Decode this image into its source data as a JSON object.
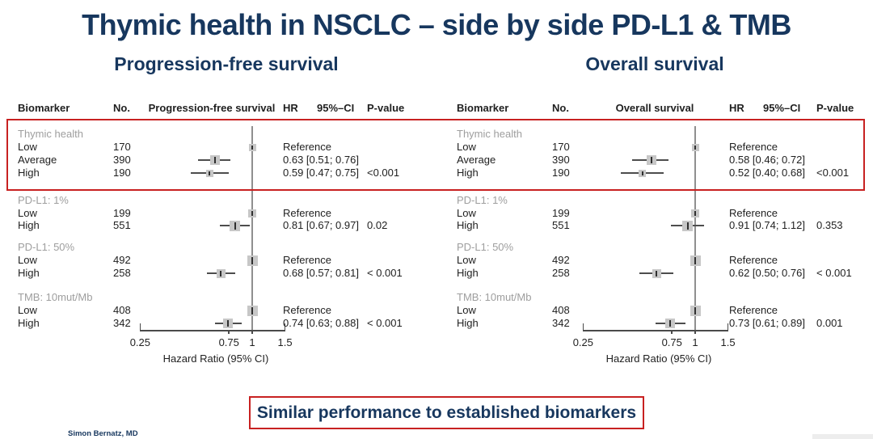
{
  "title": "Thymic health in NSCLC – side by side PD-L1 & TMB",
  "subtitles": {
    "left": "Progression-free survival",
    "right": "Overall survival"
  },
  "banner": "Similar performance to established biomarkers",
  "footer": {
    "author": "Simon Bernatz, MD"
  },
  "colors": {
    "navy": "#17375e",
    "red": "#c82121",
    "gray_label": "#9e9e9e",
    "ref_line": "#8f8f8f",
    "square_fill": "#c7c7c7",
    "ci_line": "#4d4d4d",
    "axis": "#4a4a4a",
    "text": "#1f1f1f"
  },
  "chart_data": [
    {
      "type": "forest",
      "title": "Progression-free survival",
      "columns": {
        "biomarker": "Biomarker",
        "no": "No.",
        "plot": "Progression-free survival",
        "hr": "HR",
        "ci": "95%–CI",
        "p": "P-value"
      },
      "axis": {
        "scale": "log",
        "range": [
          0.25,
          1.5
        ],
        "ticks": [
          "0.25",
          "0.75",
          "1",
          "1.5"
        ],
        "ref": 1,
        "label": "Hazard Ratio (95% CI)"
      },
      "groups": [
        {
          "label": "Thymic health",
          "rows": [
            {
              "name": "Low",
              "n": 170,
              "hr": 1,
              "est": "Reference",
              "p": ""
            },
            {
              "name": "Average",
              "n": 390,
              "hr": 0.63,
              "lo": 0.51,
              "hi": 0.76,
              "est": "0.63 [0.51; 0.76]",
              "p": ""
            },
            {
              "name": "High",
              "n": 190,
              "hr": 0.59,
              "lo": 0.47,
              "hi": 0.75,
              "est": "0.59 [0.47; 0.75]",
              "p": "<0.001"
            }
          ]
        },
        {
          "label": "PD-L1: 1%",
          "rows": [
            {
              "name": "Low",
              "n": 199,
              "hr": 1,
              "est": "Reference",
              "p": ""
            },
            {
              "name": "High",
              "n": 551,
              "hr": 0.81,
              "lo": 0.67,
              "hi": 0.97,
              "est": "0.81 [0.67; 0.97]",
              "p": "0.02"
            }
          ]
        },
        {
          "label": "PD-L1: 50%",
          "rows": [
            {
              "name": "Low",
              "n": 492,
              "hr": 1,
              "est": "Reference",
              "p": ""
            },
            {
              "name": "High",
              "n": 258,
              "hr": 0.68,
              "lo": 0.57,
              "hi": 0.81,
              "est": "0.68 [0.57; 0.81]",
              "p": "< 0.001"
            }
          ]
        },
        {
          "label": "TMB: 10mut/Mb",
          "rows": [
            {
              "name": "Low",
              "n": 408,
              "hr": 1,
              "est": "Reference",
              "p": ""
            },
            {
              "name": "High",
              "n": 342,
              "hr": 0.74,
              "lo": 0.63,
              "hi": 0.88,
              "est": "0.74 [0.63; 0.88]",
              "p": "< 0.001"
            }
          ]
        }
      ]
    },
    {
      "type": "forest",
      "title": "Overall survival",
      "columns": {
        "biomarker": "Biomarker",
        "no": "No.",
        "plot": "Overall survival",
        "hr": "HR",
        "ci": "95%–CI",
        "p": "P-value"
      },
      "axis": {
        "scale": "log",
        "range": [
          0.25,
          1.5
        ],
        "ticks": [
          "0.25",
          "0.75",
          "1",
          "1.5"
        ],
        "ref": 1,
        "label": "Hazard Ratio (95% CI)"
      },
      "groups": [
        {
          "label": "Thymic health",
          "rows": [
            {
              "name": "Low",
              "n": 170,
              "hr": 1,
              "est": "Reference",
              "p": ""
            },
            {
              "name": "Average",
              "n": 390,
              "hr": 0.58,
              "lo": 0.46,
              "hi": 0.72,
              "est": "0.58 [0.46; 0.72]",
              "p": ""
            },
            {
              "name": "High",
              "n": 190,
              "hr": 0.52,
              "lo": 0.4,
              "hi": 0.68,
              "est": "0.52 [0.40; 0.68]",
              "p": "<0.001"
            }
          ]
        },
        {
          "label": "PD-L1: 1%",
          "rows": [
            {
              "name": "Low",
              "n": 199,
              "hr": 1,
              "est": "Reference",
              "p": ""
            },
            {
              "name": "High",
              "n": 551,
              "hr": 0.91,
              "lo": 0.74,
              "hi": 1.12,
              "est": "0.91 [0.74; 1.12]",
              "p": "0.353"
            }
          ]
        },
        {
          "label": "PD-L1: 50%",
          "rows": [
            {
              "name": "Low",
              "n": 492,
              "hr": 1,
              "est": "Reference",
              "p": ""
            },
            {
              "name": "High",
              "n": 258,
              "hr": 0.62,
              "lo": 0.5,
              "hi": 0.76,
              "est": "0.62 [0.50; 0.76]",
              "p": "< 0.001"
            }
          ]
        },
        {
          "label": "TMB: 10mut/Mb",
          "rows": [
            {
              "name": "Low",
              "n": 408,
              "hr": 1,
              "est": "Reference",
              "p": ""
            },
            {
              "name": "High",
              "n": 342,
              "hr": 0.73,
              "lo": 0.61,
              "hi": 0.89,
              "est": "0.73 [0.61; 0.89]",
              "p": "0.001"
            }
          ]
        }
      ]
    }
  ]
}
